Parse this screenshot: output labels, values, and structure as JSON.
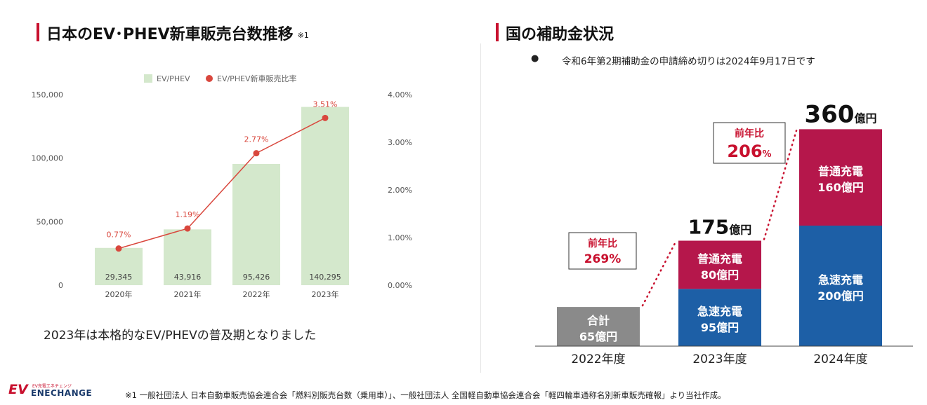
{
  "left": {
    "title": "日本のEV･PHEV新車販売台数推移",
    "note_mark": "※1",
    "caption": "2023年は本格的なEV/PHEVの普及期となりました"
  },
  "right": {
    "title": "国の補助金状況",
    "bullet": "令和6年第2期補助金の申請締め切りは2024年9月17日です"
  },
  "footnote": "※1 一般社団法人 日本自動車販売協会連合会「燃料別販売台数（乗用車）」、一般社団法人 全国軽自動車協会連合会「軽四輪車通称名別新車販売確報」より当社作成。",
  "logo": {
    "sub": "EV充電エネチェンジ",
    "main": "ENECHANGE",
    "mark": "EV"
  },
  "colors": {
    "accent": "#c8102e",
    "bar_green": "#d4e8cc",
    "line_red": "#d9473d",
    "fast_blue": "#1d5fa6",
    "normal_crimson": "#b5174b",
    "total_gray": "#8a8a8a"
  },
  "chart_data": [
    {
      "type": "bar",
      "title": "",
      "categories": [
        "2020年",
        "2021年",
        "2022年",
        "2023年"
      ],
      "series": [
        {
          "name": "EV/PHEV",
          "kind": "bar",
          "axis": "left",
          "values": [
            29345,
            43916,
            95426,
            140295
          ],
          "labels": [
            "29,345",
            "43,916",
            "95,426",
            "140,295"
          ]
        },
        {
          "name": "EV/PHEV新車販売比率",
          "kind": "line",
          "axis": "right",
          "values": [
            0.77,
            1.19,
            2.77,
            3.51
          ],
          "labels": [
            "0.77%",
            "1.19%",
            "2.77%",
            "3.51%"
          ]
        }
      ],
      "ylim": [
        0,
        150000
      ],
      "y_ticks": [
        "0",
        "50,000",
        "100,000",
        "150,000"
      ],
      "y2lim": [
        0,
        4.0
      ],
      "y2_ticks": [
        "0.00%",
        "1.00%",
        "2.00%",
        "3.00%",
        "4.00%"
      ],
      "legend_position": "top-center",
      "grid": false
    },
    {
      "type": "bar",
      "stacked": true,
      "unit": "億円",
      "categories": [
        "2022年度",
        "2023年度",
        "2024年度"
      ],
      "series": [
        {
          "name": "合計",
          "values": [
            65,
            0,
            0
          ]
        },
        {
          "name": "急速充電",
          "values": [
            0,
            95,
            200
          ]
        },
        {
          "name": "普通充電",
          "values": [
            0,
            80,
            160
          ]
        }
      ],
      "totals": [
        65,
        175,
        360
      ],
      "total_labels": [
        "",
        "175",
        "360"
      ],
      "yoy": [
        {
          "label": "前年比",
          "value": "269",
          "unit": "%"
        },
        {
          "label": "前年比",
          "value": "206",
          "unit": "%"
        }
      ]
    }
  ]
}
